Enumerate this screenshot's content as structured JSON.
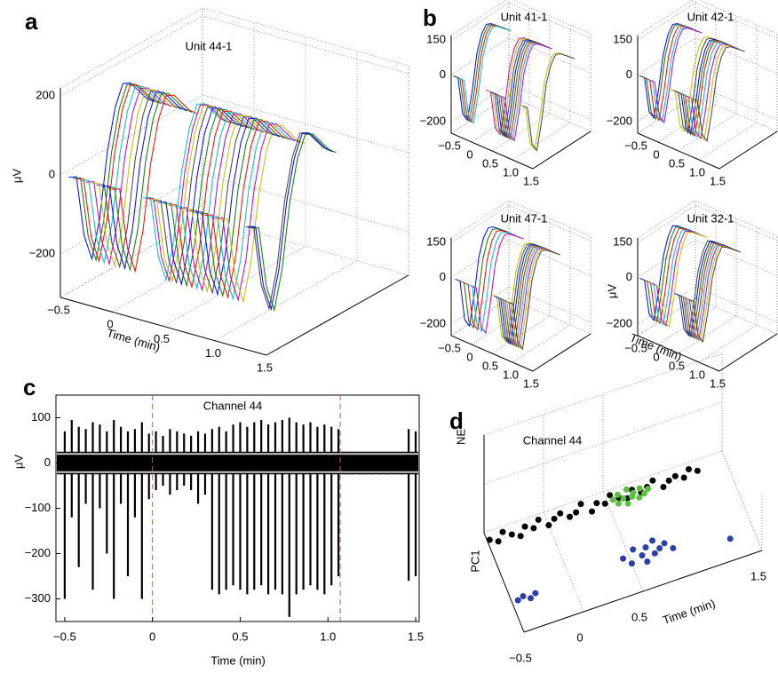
{
  "panel_labels": [
    "a",
    "b",
    "c",
    "d"
  ],
  "chart_data": [
    {
      "type": "waterfall",
      "title": "Unit 44-1",
      "xlabel": "Time (min)",
      "zlabel": "μV",
      "xlim": [
        -0.5,
        1.5
      ],
      "zlim": [
        -310,
        220
      ],
      "xticks": [
        {
          "value": -0.5,
          "label": "−0.5"
        },
        0,
        0.5,
        {
          "value": 1,
          "label": "1.0"
        },
        1.5
      ],
      "zticks": [
        {
          "value": -200,
          "label": "−200"
        },
        0,
        200
      ],
      "times": [
        -0.42,
        -0.38,
        -0.35,
        -0.3,
        -0.25,
        -0.2,
        -0.15,
        -0.1,
        -0.05,
        0.0,
        0.3,
        0.33,
        0.36,
        0.4,
        0.45,
        0.5,
        0.55,
        0.6,
        0.65,
        0.7,
        0.75,
        0.8,
        0.85,
        0.9,
        0.95,
        1.0,
        1.05,
        1.3,
        1.32,
        1.35
      ],
      "waveform": [
        0,
        -10,
        -170,
        -240,
        -150,
        10,
        110,
        160,
        150,
        120,
        90,
        70
      ],
      "colors": [
        "#0000ff",
        "#008000",
        "#ff0000",
        "#00bfbf",
        "#bf00bf",
        "#bfbf00",
        "#404040"
      ]
    },
    {
      "type": "waterfall",
      "title": "Unit 41-1",
      "xlim": [
        -0.5,
        1.5
      ],
      "zlim": [
        -250,
        170
      ],
      "xticks": [
        {
          "value": -0.5,
          "label": "−0.5"
        },
        0,
        0.5,
        {
          "value": 1,
          "label": "1.0"
        },
        1.5
      ],
      "zticks": [
        {
          "value": -200,
          "label": "−200"
        },
        0,
        150
      ],
      "times": [
        -0.45,
        -0.4,
        -0.35,
        -0.3,
        0.35,
        0.4,
        0.45,
        0.5,
        0.55,
        0.6,
        0.65,
        0.7,
        1.2,
        1.25
      ],
      "waveform": [
        0,
        -20,
        -190,
        -230,
        -120,
        30,
        100,
        130,
        120,
        100,
        80,
        60
      ],
      "colors": [
        "#0000ff",
        "#008000",
        "#ff0000",
        "#00bfbf",
        "#bf00bf",
        "#bfbf00",
        "#404040"
      ]
    },
    {
      "type": "waterfall",
      "title": "Unit 42-1",
      "xlim": [
        -0.5,
        1.5
      ],
      "zlim": [
        -250,
        170
      ],
      "xticks": [
        {
          "value": -0.5,
          "label": "−0.5"
        },
        0,
        0.5,
        {
          "value": 1,
          "label": "1.0"
        },
        1.5
      ],
      "zticks": [
        {
          "value": -200,
          "label": "−200"
        },
        0,
        150
      ],
      "times": [
        -0.45,
        -0.4,
        -0.32,
        -0.25,
        -0.2,
        0.3,
        0.38,
        0.45,
        0.5,
        0.55,
        0.62,
        0.7,
        0.78,
        0.85
      ],
      "waveform": [
        0,
        -20,
        -180,
        -220,
        -110,
        30,
        100,
        130,
        120,
        100,
        80,
        60
      ],
      "colors": [
        "#0000ff",
        "#008000",
        "#ff0000",
        "#00bfbf",
        "#bf00bf",
        "#bfbf00",
        "#404040"
      ]
    },
    {
      "type": "waterfall",
      "title": "Unit 47-1",
      "xlim": [
        -0.5,
        1.5
      ],
      "zlim": [
        -250,
        170
      ],
      "xticks": [
        {
          "value": -0.5,
          "label": "−0.5"
        },
        0,
        0.5,
        {
          "value": 1,
          "label": "1.0"
        },
        1.5
      ],
      "zticks": [
        {
          "value": -200,
          "label": "−200"
        },
        0,
        150
      ],
      "times": [
        -0.4,
        -0.3,
        -0.2,
        -0.1,
        0.0,
        0.5,
        0.55,
        0.6,
        0.65,
        0.7,
        0.75,
        0.8,
        0.85,
        0.9
      ],
      "waveform": [
        0,
        -20,
        -200,
        -240,
        -120,
        30,
        100,
        130,
        120,
        100,
        80,
        60
      ],
      "colors": [
        "#0000ff",
        "#008000",
        "#ff0000",
        "#00bfbf",
        "#bf00bf",
        "#bfbf00",
        "#404040"
      ]
    },
    {
      "type": "waterfall",
      "title": "Unit 32-1",
      "xlabel": "Time (min)",
      "zlabel": "μV",
      "xlim": [
        -0.5,
        1.5
      ],
      "zlim": [
        -250,
        170
      ],
      "xticks": [
        {
          "value": -0.5,
          "label": "−0.5"
        },
        0,
        0.5,
        {
          "value": 1,
          "label": "1.0"
        },
        1.5
      ],
      "zticks": [
        {
          "value": -200,
          "label": "−200"
        },
        0,
        150
      ],
      "times": [
        -0.45,
        -0.38,
        -0.3,
        -0.22,
        -0.15,
        -0.08,
        0.4,
        0.45,
        0.5,
        0.55,
        0.6,
        0.65,
        0.7,
        0.75
      ],
      "waveform": [
        0,
        -20,
        -180,
        -220,
        -110,
        30,
        100,
        135,
        120,
        100,
        80,
        60
      ],
      "colors": [
        "#0000ff",
        "#008000",
        "#ff0000",
        "#00bfbf",
        "#bf00bf",
        "#bfbf00",
        "#404040"
      ]
    },
    {
      "type": "trace",
      "title": "Channel 44",
      "xlabel": "Time (min)",
      "ylabel": "μV",
      "xlim": [
        -0.55,
        1.52
      ],
      "ylim": [
        -350,
        150
      ],
      "xticks": [
        {
          "value": -0.5,
          "label": "−0.5"
        },
        0,
        0.5,
        {
          "value": 1,
          "label": "1.0"
        },
        1.5
      ],
      "yticks": [
        {
          "value": -300,
          "label": "−300"
        },
        {
          "value": -200,
          "label": "−200"
        },
        {
          "value": -100,
          "label": "−100"
        },
        0,
        100
      ],
      "x": [
        -0.5,
        -0.46,
        -0.42,
        -0.38,
        -0.34,
        -0.3,
        -0.26,
        -0.22,
        -0.18,
        -0.14,
        -0.1,
        -0.06,
        -0.02,
        0.02,
        0.06,
        0.1,
        0.14,
        0.18,
        0.22,
        0.26,
        0.3,
        0.34,
        0.38,
        0.42,
        0.46,
        0.5,
        0.54,
        0.58,
        0.62,
        0.66,
        0.7,
        0.74,
        0.78,
        0.82,
        0.86,
        0.9,
        0.94,
        0.98,
        1.02,
        1.06,
        1.1,
        1.14,
        1.18,
        1.22,
        1.26,
        1.3,
        1.34,
        1.38,
        1.42,
        1.46,
        1.5
      ],
      "series": [
        {
          "color": "#000000",
          "values": [
            70,
            95,
            80,
            75,
            90,
            85,
            70,
            95,
            80,
            70,
            75,
            90,
            65,
            70,
            60,
            75,
            70,
            65,
            60,
            70,
            65,
            75,
            80,
            70,
            85,
            90,
            80,
            90,
            95,
            85,
            90,
            95,
            100,
            90,
            85,
            90,
            80,
            85,
            80,
            75,
            20,
            20,
            20,
            20,
            20,
            20,
            20,
            20,
            20,
            75,
            70
          ]
        },
        {
          "color": "#000000",
          "values": [
            -300,
            -120,
            -230,
            -90,
            -280,
            -100,
            -200,
            -300,
            -90,
            -250,
            -120,
            -300,
            -80,
            -60,
            -50,
            -70,
            -60,
            -50,
            -60,
            -90,
            -70,
            -280,
            -290,
            -280,
            -270,
            -280,
            -290,
            -280,
            -270,
            -290,
            -280,
            -290,
            -340,
            -290,
            -280,
            -270,
            -280,
            -290,
            -270,
            -250,
            -25,
            -25,
            -25,
            -25,
            -25,
            -25,
            -25,
            -25,
            -25,
            -260,
            -250
          ]
        }
      ],
      "noise_band": [
        -25,
        25
      ],
      "hlines": [
        20,
        -20
      ],
      "hline_color": "#c8c8c8",
      "vlines": [
        0,
        1.07
      ],
      "vline_color": "#e8474a"
    },
    {
      "type": "scatter",
      "title": "Channel 44",
      "xlabel": "Time (min)",
      "ylabel": "PC1",
      "zlabel": "NE",
      "xlim": [
        -0.5,
        1.5
      ],
      "ylim": [
        0,
        1
      ],
      "xticks": [
        {
          "value": -0.5,
          "label": "−0.5"
        },
        0,
        0.5,
        1.5
      ],
      "series": [
        {
          "color": "#000000",
          "x": [
            -0.48,
            -0.42,
            -0.36,
            -0.3,
            -0.24,
            -0.18,
            -0.12,
            -0.06,
            0,
            0.06,
            0.12,
            0.18,
            0.24,
            0.3,
            0.36,
            0.42,
            0.48,
            0.54,
            0.6,
            0.66,
            0.72,
            0.78,
            0.84,
            0.9,
            0.96,
            1.02,
            1.08,
            1.14,
            1.2,
            1.26
          ],
          "values": [
            0.92,
            0.88,
            0.95,
            0.9,
            0.86,
            0.93,
            0.89,
            0.95,
            0.87,
            0.91,
            0.94,
            0.88,
            0.9,
            0.96,
            0.86,
            0.92,
            0.89,
            0.95,
            0.9,
            0.87,
            0.93,
            0.88,
            0.91,
            0.95,
            0.86,
            0.9,
            0.92,
            0.88,
            0.94,
            0.9
          ]
        },
        {
          "color": "#5bbf3f",
          "x": [
            0.55,
            0.58,
            0.6,
            0.63,
            0.65,
            0.68,
            0.7,
            0.72,
            0.75,
            0.78,
            0.8,
            0.84
          ],
          "values": [
            0.9,
            0.85,
            0.93,
            0.88,
            0.82,
            0.95,
            0.87,
            0.9,
            0.84,
            0.92,
            0.86,
            0.89
          ]
        },
        {
          "color": "#2a3fa8",
          "x": [
            -0.45,
            -0.4,
            -0.35,
            -0.3,
            0.45,
            0.5,
            0.55,
            0.6,
            0.62,
            0.65,
            0.7,
            0.72,
            0.75,
            0.8,
            0.85,
            1.3
          ],
          "values": [
            0.3,
            0.32,
            0.28,
            0.31,
            0.35,
            0.28,
            0.4,
            0.32,
            0.25,
            0.38,
            0.3,
            0.42,
            0.33,
            0.36,
            0.29,
            0.2
          ]
        }
      ]
    }
  ]
}
